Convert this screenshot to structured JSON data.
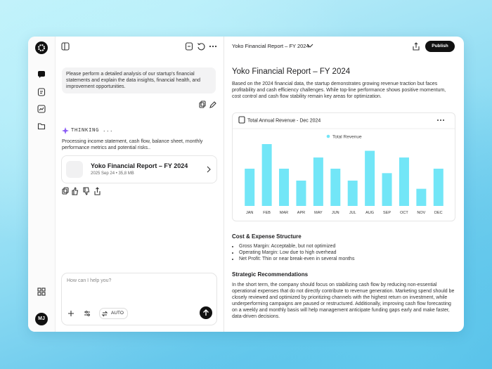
{
  "sidebar": {
    "avatar": "MJ"
  },
  "chat": {
    "user_message": "Please perform a detailed analysis of our startup's financial statements and explain the data insights, financial health, and improvement opportunities.",
    "thinking_label": "THINKING ...",
    "thinking_text": "Processing income statement, cash flow, balance sheet, monthly performance metrics and potential risks..",
    "file_title": "Yoko Financial Report – FY 2024",
    "file_meta": "2025 Sep 24 • 35,8 MB",
    "input_placeholder": "How can I help you?",
    "mode": "AUTO"
  },
  "report": {
    "tab_title": "Yoko Financial Report – FY 2024",
    "publish": "Publish",
    "title": "Yoko Financial Report – FY 2024",
    "intro": "Based on the 2024 financial data, the startup demonstrates growing revenue traction but faces profitability and cash efficiency challenges. While top-line performance shows positive momentum, cost control and cash flow stability remain key areas for optimization.",
    "cost_heading": "Cost & Expense Structure",
    "cost_bullets": [
      "Gross Margin: Acceptable, but not optimized",
      "Operating Margin: Low due to high overhead",
      "Net Profit: Thin or near break-even in several months"
    ],
    "strategy_heading": "Strategic Recommendations",
    "strategy_text": "In the short term, the company should focus on stabilizing cash flow by reducing non-essential operational expenses that do not directly contribute to revenue generation. Marketing spend should be closely reviewed and optimized by prioritizing channels with the highest return on investment, while underperforming campaigns are paused or restructured. Additionally, improving cash flow forecasting on a weekly and monthly basis will help management anticipate funding gaps early and make faster, data-driven decisions."
  },
  "chart_data": {
    "type": "bar",
    "title": "Total Annual Revenue - Dec 2024",
    "categories": [
      "JAN",
      "FEB",
      "MAR",
      "APR",
      "MAY",
      "JUN",
      "JUL",
      "AUG",
      "SEP",
      "OCT",
      "NOV",
      "DEC"
    ],
    "series": [
      {
        "name": "Total Revenue",
        "color": "#72e6f7",
        "values": [
          50,
          83,
          50,
          34,
          65,
          50,
          34,
          74,
          44,
          65,
          23,
          50
        ]
      }
    ]
  }
}
